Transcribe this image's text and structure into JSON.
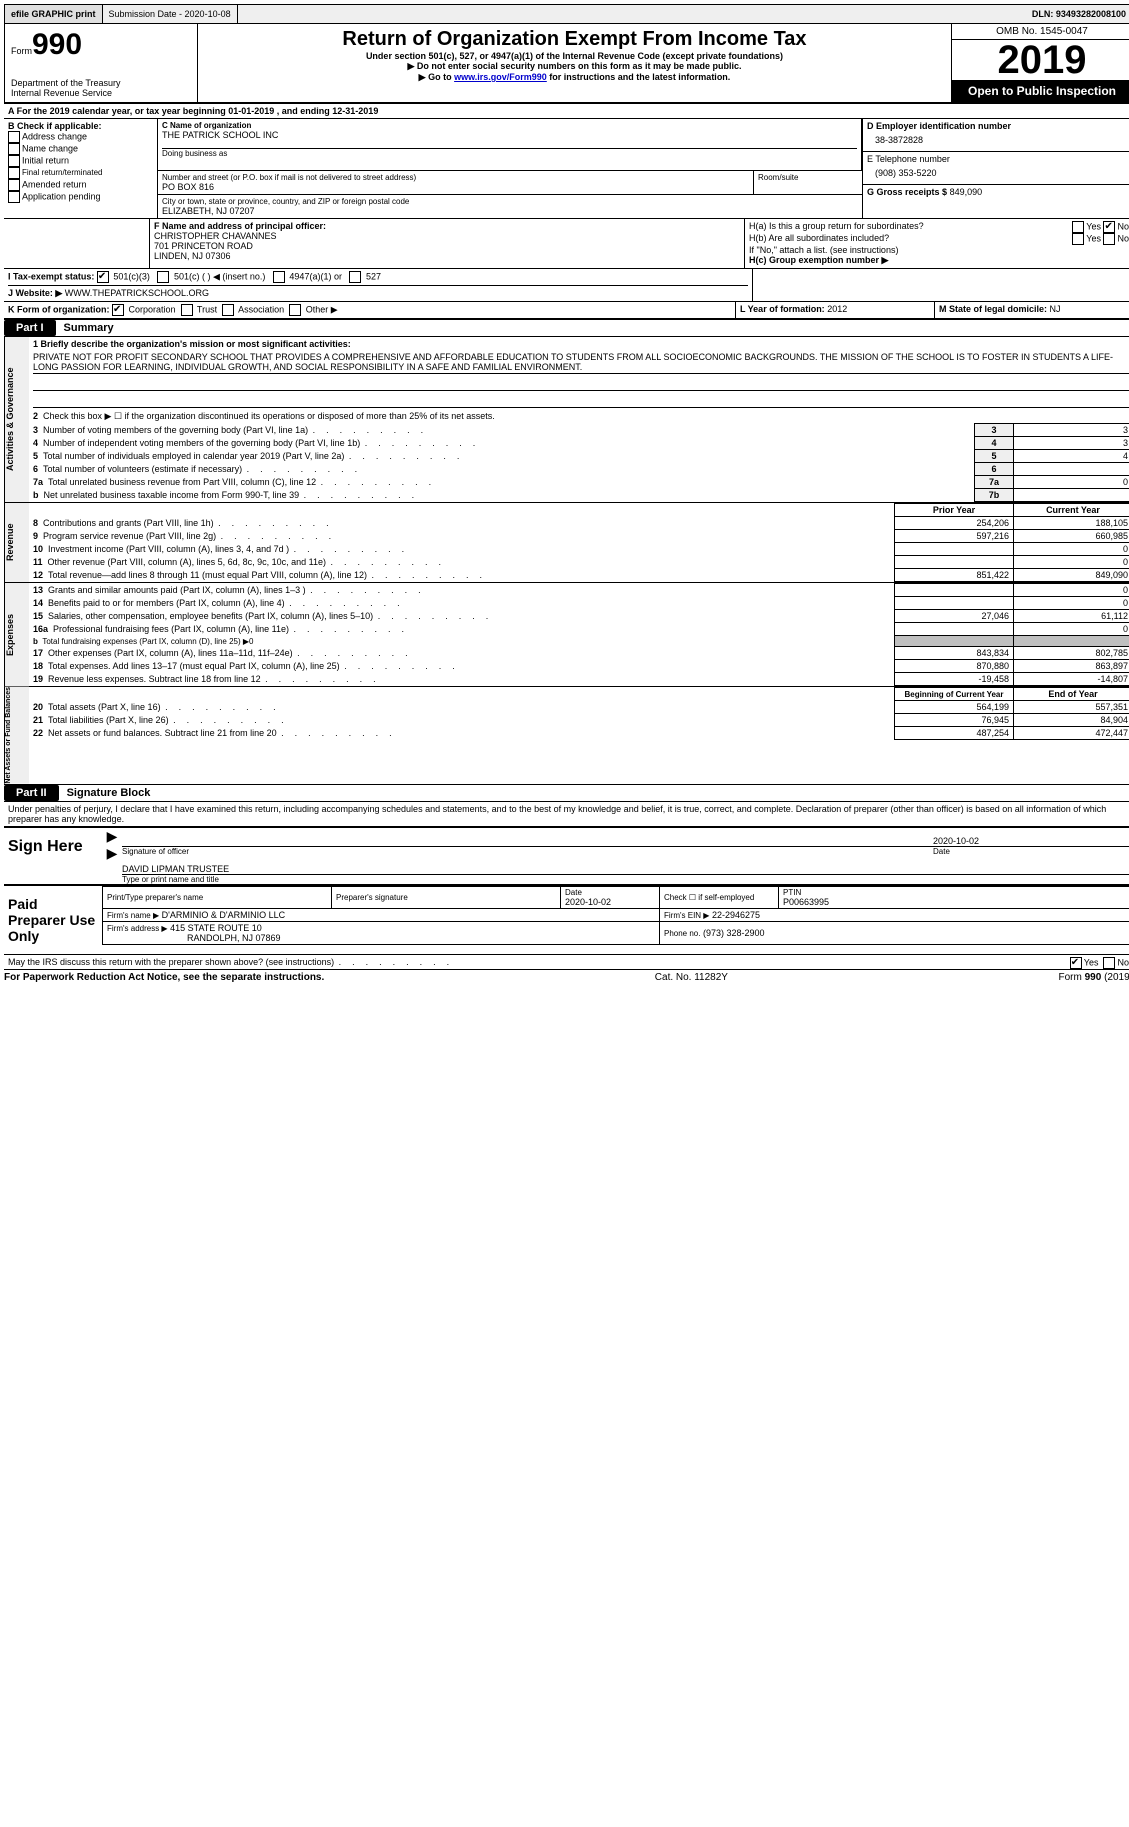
{
  "topbar": {
    "efile_label": "efile GRAPHIC print",
    "submission": "Submission Date - 2020-10-08",
    "dln": "DLN: 93493282008100"
  },
  "header": {
    "form_small": "Form",
    "form_num": "990",
    "dept1": "Department of the Treasury",
    "dept2": "Internal Revenue Service",
    "title": "Return of Organization Exempt From Income Tax",
    "sub1": "Under section 501(c), 527, or 4947(a)(1) of the Internal Revenue Code (except private foundations)",
    "sub2": "▶ Do not enter social security numbers on this form as it may be made public.",
    "sub3a": "▶ Go to ",
    "sub3_link": "www.irs.gov/Form990",
    "sub3b": " for instructions and the latest information.",
    "omb": "OMB No. 1545-0047",
    "year": "2019",
    "inspect": "Open to Public Inspection"
  },
  "periodA": "A For the 2019 calendar year, or tax year beginning 01-01-2019   , and ending 12-31-2019",
  "boxB": {
    "title": "B Check if applicable:",
    "items": [
      "Address change",
      "Name change",
      "Initial return",
      "Final return/terminated",
      "Amended return",
      "Application pending"
    ]
  },
  "boxC": {
    "label": "C Name of organization",
    "name": "THE PATRICK SCHOOL INC",
    "dba_label": "Doing business as",
    "addr_label": "Number and street (or P.O. box if mail is not delivered to street address)",
    "room_label": "Room/suite",
    "addr": "PO BOX 816",
    "city_label": "City or town, state or province, country, and ZIP or foreign postal code",
    "city": "ELIZABETH, NJ  07207"
  },
  "boxD": {
    "label": "D Employer identification number",
    "ein": "38-3872828"
  },
  "boxE": {
    "label": "E Telephone number",
    "phone": "(908) 353-5220"
  },
  "boxG": {
    "label": "G Gross receipts $",
    "amount": "849,090"
  },
  "boxF": {
    "label": "F Name and address of principal officer:",
    "name": "CHRISTOPHER CHAVANNES",
    "addr1": "701 PRINCETON ROAD",
    "addr2": "LINDEN, NJ  07306"
  },
  "boxH": {
    "a_label": "H(a)  Is this a group return for subordinates?",
    "b_label": "H(b)  Are all subordinates included?",
    "note": "If \"No,\" attach a list. (see instructions)",
    "c_label": "H(c)  Group exemption number ▶",
    "yes": "Yes",
    "no": "No"
  },
  "boxI": {
    "label": "I   Tax-exempt status:",
    "opts": [
      "501(c)(3)",
      "501(c) (  ) ◀ (insert no.)",
      "4947(a)(1) or",
      "527"
    ]
  },
  "boxJ": {
    "label": "J   Website: ▶",
    "url": "WWW.THEPATRICKSCHOOL.ORG"
  },
  "boxK": {
    "label": "K Form of organization:",
    "opts": [
      "Corporation",
      "Trust",
      "Association",
      "Other ▶"
    ]
  },
  "boxL": {
    "label": "L Year of formation:",
    "val": "2012"
  },
  "boxM": {
    "label": "M State of legal domicile:",
    "val": "NJ"
  },
  "part1": {
    "num": "Part I",
    "title": "Summary"
  },
  "mission_intro": "1  Briefly describe the organization's mission or most significant activities:",
  "mission": "PRIVATE NOT FOR PROFIT SECONDARY SCHOOL THAT PROVIDES A COMPREHENSIVE AND AFFORDABLE EDUCATION TO STUDENTS FROM ALL SOCIOECONOMIC BACKGROUNDS. THE MISSION OF THE SCHOOL IS TO FOSTER IN STUDENTS A LIFE-LONG PASSION FOR LEARNING, INDIVIDUAL GROWTH, AND SOCIAL RESPONSIBILITY IN A SAFE AND FAMILIAL ENVIRONMENT.",
  "lines_a": [
    {
      "n": "2",
      "t": "Check this box ▶ ☐  if the organization discontinued its operations or disposed of more than 25% of its net assets.",
      "no_val": true
    },
    {
      "n": "3",
      "t": "Number of voting members of the governing body (Part VI, line 1a)",
      "k": "3",
      "v": "3"
    },
    {
      "n": "4",
      "t": "Number of independent voting members of the governing body (Part VI, line 1b)",
      "k": "4",
      "v": "3"
    },
    {
      "n": "5",
      "t": "Total number of individuals employed in calendar year 2019 (Part V, line 2a)",
      "k": "5",
      "v": "4"
    },
    {
      "n": "6",
      "t": "Total number of volunteers (estimate if necessary)",
      "k": "6",
      "v": ""
    },
    {
      "n": "7a",
      "t": "Total unrelated business revenue from Part VIII, column (C), line 12",
      "k": "7a",
      "v": "0"
    },
    {
      "n": "b",
      "t": "Net unrelated business taxable income from Form 990-T, line 39",
      "k": "7b",
      "v": ""
    }
  ],
  "col_headers": {
    "prior": "Prior Year",
    "current": "Current Year",
    "begin": "Beginning of Current Year",
    "end": "End of Year"
  },
  "revenue": [
    {
      "n": "8",
      "t": "Contributions and grants (Part VIII, line 1h)",
      "p": "254,206",
      "c": "188,105"
    },
    {
      "n": "9",
      "t": "Program service revenue (Part VIII, line 2g)",
      "p": "597,216",
      "c": "660,985"
    },
    {
      "n": "10",
      "t": "Investment income (Part VIII, column (A), lines 3, 4, and 7d )",
      "p": "",
      "c": "0"
    },
    {
      "n": "11",
      "t": "Other revenue (Part VIII, column (A), lines 5, 6d, 8c, 9c, 10c, and 11e)",
      "p": "",
      "c": "0"
    },
    {
      "n": "12",
      "t": "Total revenue—add lines 8 through 11 (must equal Part VIII, column (A), line 12)",
      "p": "851,422",
      "c": "849,090"
    }
  ],
  "expenses": [
    {
      "n": "13",
      "t": "Grants and similar amounts paid (Part IX, column (A), lines 1–3 )",
      "p": "",
      "c": "0"
    },
    {
      "n": "14",
      "t": "Benefits paid to or for members (Part IX, column (A), line 4)",
      "p": "",
      "c": "0"
    },
    {
      "n": "15",
      "t": "Salaries, other compensation, employee benefits (Part IX, column (A), lines 5–10)",
      "p": "27,046",
      "c": "61,112"
    },
    {
      "n": "16a",
      "t": "Professional fundraising fees (Part IX, column (A), line 11e)",
      "p": "",
      "c": "0"
    },
    {
      "n": "b",
      "t": "Total fundraising expenses (Part IX, column (D), line 25) ▶0",
      "grey": true
    },
    {
      "n": "17",
      "t": "Other expenses (Part IX, column (A), lines 11a–11d, 11f–24e)",
      "p": "843,834",
      "c": "802,785"
    },
    {
      "n": "18",
      "t": "Total expenses. Add lines 13–17 (must equal Part IX, column (A), line 25)",
      "p": "870,880",
      "c": "863,897"
    },
    {
      "n": "19",
      "t": "Revenue less expenses. Subtract line 18 from line 12",
      "p": "-19,458",
      "c": "-14,807"
    }
  ],
  "netassets": [
    {
      "n": "20",
      "t": "Total assets (Part X, line 16)",
      "p": "564,199",
      "c": "557,351"
    },
    {
      "n": "21",
      "t": "Total liabilities (Part X, line 26)",
      "p": "76,945",
      "c": "84,904"
    },
    {
      "n": "22",
      "t": "Net assets or fund balances. Subtract line 21 from line 20",
      "p": "487,254",
      "c": "472,447"
    }
  ],
  "vlabels": {
    "ag": "Activities & Governance",
    "rev": "Revenue",
    "exp": "Expenses",
    "na": "Net Assets or Fund Balances"
  },
  "part2": {
    "num": "Part II",
    "title": "Signature Block"
  },
  "sig": {
    "penalty": "Under penalties of perjury, I declare that I have examined this return, including accompanying schedules and statements, and to the best of my knowledge and belief, it is true, correct, and complete. Declaration of preparer (other than officer) is based on all information of which preparer has any knowledge.",
    "sign_here": "Sign Here",
    "sig_officer": "Signature of officer",
    "date": "2020-10-02",
    "date_label": "Date",
    "name": "DAVID LIPMAN  TRUSTEE",
    "name_label": "Type or print name and title",
    "paid": "Paid Preparer Use Only",
    "pt_name_label": "Print/Type preparer's name",
    "pt_sig_label": "Preparer's signature",
    "pt_date_label": "Date",
    "pt_date": "2020-10-02",
    "self_label": "Check ☐ if self-employed",
    "ptin_label": "PTIN",
    "ptin": "P00663995",
    "firm_name_label": "Firm's name    ▶",
    "firm_name": "D'ARMINIO & D'ARMINIO LLC",
    "firm_ein_label": "Firm's EIN ▶",
    "firm_ein": "22-2946275",
    "firm_addr_label": "Firm's address ▶",
    "firm_addr1": "415 STATE ROUTE 10",
    "firm_addr2": "RANDOLPH, NJ  07869",
    "phone_label": "Phone no.",
    "phone": "(973) 328-2900",
    "discuss": "May the IRS discuss this return with the preparer shown above? (see instructions)"
  },
  "footer": {
    "left": "For Paperwork Reduction Act Notice, see the separate instructions.",
    "mid": "Cat. No. 11282Y",
    "right": "Form 990 (2019)"
  }
}
